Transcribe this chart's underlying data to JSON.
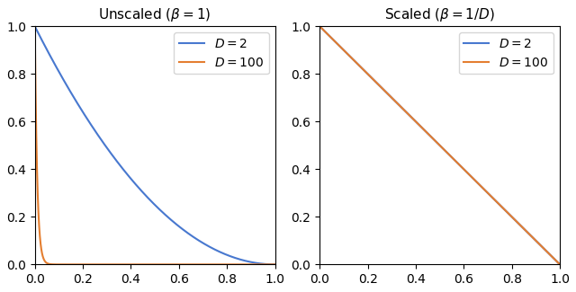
{
  "title_left": "Unscaled ($\\beta = 1$)",
  "title_right": "Scaled ($\\beta = 1/D$)",
  "D_values": [
    2,
    100
  ],
  "colors": [
    "#4878cf",
    "#e47e30"
  ],
  "legend_labels": [
    "$D = 2$",
    "$D = 100$"
  ],
  "x_min": 0.0,
  "x_max": 1.0,
  "y_min": 0.0,
  "y_max": 1.0,
  "n_points": 2000,
  "figsize": [
    6.4,
    3.25
  ],
  "dpi": 100
}
